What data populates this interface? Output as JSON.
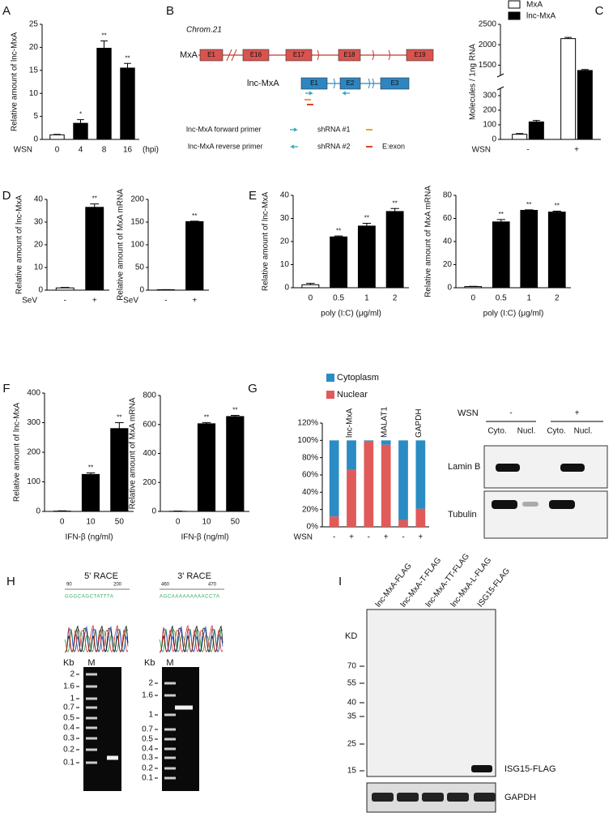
{
  "chart_data": [
    {
      "label": "A",
      "type": "bar",
      "ylabel": "Relative amount of lnc-MxA",
      "xlabel": "WSN",
      "xunit": "(hpi)",
      "categories": [
        "0",
        "4",
        "8",
        "16"
      ],
      "values": [
        1,
        3.5,
        19.8,
        15.5
      ],
      "errors": [
        0.1,
        0.8,
        1.6,
        1.0
      ],
      "significance": [
        null,
        "*",
        "**",
        "**"
      ],
      "colors": [
        "#ffffff",
        "#000000",
        "#000000",
        "#000000"
      ],
      "ylim": [
        0,
        25
      ],
      "yticks": [
        0,
        5,
        10,
        15,
        20,
        25
      ]
    },
    {
      "label": "C",
      "type": "grouped_bar",
      "ylabel": "Molecules / 1ng RNA",
      "xlabel": "WSN",
      "categories": [
        "-",
        "+"
      ],
      "series": [
        {
          "name": "MxA",
          "color": "#ffffff",
          "values": [
            35,
            2150
          ],
          "errors": [
            5,
            30
          ]
        },
        {
          "name": "lnc-MxA",
          "color": "#000000",
          "values": [
            120,
            1370
          ],
          "errors": [
            10,
            25
          ]
        }
      ],
      "ylim": [
        0,
        2500
      ],
      "axis_break": [
        350,
        1250
      ],
      "yticks": [
        0,
        100,
        200,
        300,
        1500,
        2000,
        2500
      ]
    },
    {
      "label": "D",
      "type": "bar",
      "ylabel": "Relative amount of lnc-MxA",
      "xlabel": "SeV",
      "categories": [
        "-",
        "+"
      ],
      "values": [
        1,
        36.5
      ],
      "errors": [
        0.2,
        1.5
      ],
      "significance": [
        null,
        "**"
      ],
      "colors": [
        "#ffffff",
        "#000000"
      ],
      "ylim": [
        0,
        40
      ],
      "yticks": [
        0,
        10,
        20,
        30,
        40
      ]
    },
    {
      "type": "bar",
      "ylabel": "Relative amount of MxA mRNA",
      "xlabel": "SeV",
      "categories": [
        "-",
        "+"
      ],
      "values": [
        1,
        151
      ],
      "errors": [
        0.2,
        1
      ],
      "significance": [
        null,
        "**"
      ],
      "colors": [
        "#ffffff",
        "#000000"
      ],
      "ylim": [
        0,
        200
      ],
      "yticks": [
        0,
        50,
        100,
        150,
        200
      ]
    },
    {
      "label": "E",
      "type": "bar",
      "ylabel": "Relative amount of lnc-MxA",
      "xlabel": "poly (I:C) (μg/ml)",
      "categories": [
        "0",
        "0.5",
        "1",
        "2"
      ],
      "values": [
        1.3,
        22,
        26.7,
        33
      ],
      "errors": [
        0.6,
        0.4,
        1.2,
        1.3
      ],
      "significance": [
        null,
        "**",
        "**",
        "**"
      ],
      "colors": [
        "#ffffff",
        "#000000",
        "#000000",
        "#000000"
      ],
      "ylim": [
        0,
        40
      ],
      "yticks": [
        0,
        10,
        20,
        30,
        40
      ]
    },
    {
      "type": "bar",
      "ylabel": "Relative amount of MxA mRNA",
      "xlabel": "poly (I:C) (μg/ml)",
      "categories": [
        "0",
        "0.5",
        "1",
        "2"
      ],
      "values": [
        1,
        57,
        67,
        65.5
      ],
      "errors": [
        0.2,
        2,
        0.5,
        0.8
      ],
      "significance": [
        null,
        "**",
        "**",
        "**"
      ],
      "colors": [
        "#ffffff",
        "#000000",
        "#000000",
        "#000000"
      ],
      "ylim": [
        0,
        80
      ],
      "yticks": [
        0,
        20,
        40,
        60,
        80
      ]
    },
    {
      "label": "F",
      "type": "bar",
      "ylabel": "Relative amount of lnc-MxA",
      "xlabel": "IFN-β (ng/ml)",
      "categories": [
        "0",
        "10",
        "50"
      ],
      "values": [
        1,
        125,
        280
      ],
      "errors": [
        1,
        5,
        20
      ],
      "significance": [
        null,
        "**",
        "**"
      ],
      "colors": [
        "#ffffff",
        "#000000",
        "#000000"
      ],
      "ylim": [
        0,
        400
      ],
      "yticks": [
        0,
        100,
        200,
        300,
        400
      ]
    },
    {
      "type": "bar",
      "ylabel": "Relative amount of MxA mRNA",
      "xlabel": "IFN-β (ng/ml)",
      "categories": [
        "0",
        "10",
        "50"
      ],
      "values": [
        1,
        605,
        655
      ],
      "errors": [
        2,
        8,
        8
      ],
      "significance": [
        null,
        "**",
        "**"
      ],
      "colors": [
        "#ffffff",
        "#000000",
        "#000000"
      ],
      "ylim": [
        0,
        800
      ],
      "yticks": [
        0,
        200,
        400,
        600,
        800
      ]
    },
    {
      "label": "G",
      "type": "stacked_bar",
      "xlabel": "WSN",
      "categories": [
        "-",
        "+",
        "-",
        "+",
        "-",
        "+"
      ],
      "groups": [
        "lnc-MxA",
        "MALAT1",
        "GAPDH"
      ],
      "series": [
        {
          "name": "Nuclear",
          "color": "#e05a5a",
          "values": [
            12,
            66,
            99,
            95,
            8,
            21
          ]
        },
        {
          "name": "Cytoplasm",
          "color": "#2b8cc4",
          "values": [
            88,
            34,
            1,
            5,
            92,
            79
          ]
        }
      ],
      "ylim": [
        0,
        120
      ],
      "yticks": [
        {
          "value": 0,
          "label": "0%"
        },
        {
          "value": 20,
          "label": "20%"
        },
        {
          "value": 40,
          "label": "40%"
        },
        {
          "value": 60,
          "label": "60%"
        },
        {
          "value": 80,
          "label": "80%"
        },
        {
          "value": 100,
          "label": "100%"
        },
        {
          "value": 120,
          "label": "120%"
        }
      ]
    }
  ],
  "diagram_b": {
    "label": "B",
    "chromosome": "Chrom.21",
    "genes": [
      {
        "name": "MxA",
        "exons": [
          "E1",
          "E16",
          "E17",
          "E18",
          "E19"
        ]
      },
      {
        "name": "lnc-MxA",
        "exons": [
          "E1",
          "E2",
          "E3"
        ]
      }
    ],
    "legend": [
      "lnc-MxA forward primer",
      "lnc-MxA reverse primer",
      "shRNA #1",
      "shRNA #2",
      "E:exon"
    ]
  },
  "blot_g": {
    "condition": "WSN",
    "states": [
      "-",
      "+"
    ],
    "fractions": [
      "Cyto.",
      "Nucl.",
      "Cyto.",
      "Nucl."
    ],
    "proteins": [
      "Lamin B",
      "Tubulin"
    ]
  },
  "race_h": {
    "label": "H",
    "panels": [
      {
        "title": "5' RACE",
        "positions": [
          90,
          200
        ],
        "sequence": "GGGCAGCTATTTA",
        "unit": "Kb",
        "marker": "M",
        "ladder": [
          2,
          1.6,
          1,
          0.7,
          0.5,
          0.4,
          0.3,
          0.2,
          0.1
        ]
      },
      {
        "title": "3' RACE",
        "positions": [
          460,
          470
        ],
        "sequence": "AGCAAAAAAAAACCTA",
        "unit": "Kb",
        "marker": "M",
        "ladder": [
          2,
          1.6,
          1,
          0.7,
          0.5,
          0.4,
          0.3,
          0.2,
          0.1
        ]
      }
    ]
  },
  "blot_i": {
    "label": "I",
    "lanes": [
      "lnc-MxA-FLAG",
      "lnc-MxA-T-FLAG",
      "lnc-MxA-TT-FLAG",
      "lnc-MxA-L-FLAG",
      "ISG15-FLAG"
    ],
    "unit": "KD",
    "markers": [
      70,
      55,
      40,
      35,
      25,
      15
    ],
    "band_label": "ISG15-FLAG",
    "loading_control": "GAPDH"
  }
}
